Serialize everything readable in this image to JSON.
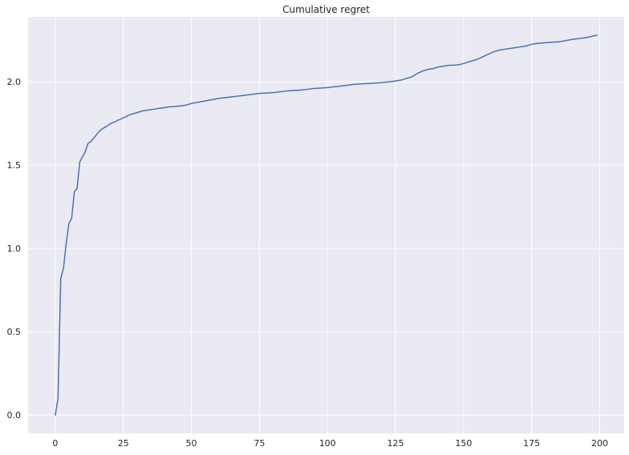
{
  "colors": {
    "background": "#ffffff",
    "plot_background": "#eaeaf2",
    "grid": "#ffffff",
    "text": "#262626"
  },
  "chart_data": {
    "type": "line",
    "title": "Cumulative regret",
    "xlabel": "",
    "ylabel": "",
    "xlim": [
      -10,
      209
    ],
    "ylim": [
      -0.11,
      2.39
    ],
    "x_ticks": [
      0,
      25,
      50,
      75,
      100,
      125,
      150,
      175,
      200
    ],
    "x_tick_labels": [
      "0",
      "25",
      "50",
      "75",
      "100",
      "125",
      "150",
      "175",
      "200"
    ],
    "y_ticks": [
      0.0,
      0.5,
      1.0,
      1.5,
      2.0
    ],
    "y_tick_labels": [
      "0.0",
      "0.5",
      "1.0",
      "1.5",
      "2.0"
    ],
    "grid": true,
    "series": [
      {
        "color": "#4c72b0",
        "x": [
          0,
          1,
          2,
          3,
          4,
          5,
          6,
          7,
          8,
          9,
          10,
          11,
          12,
          13,
          14,
          15,
          16,
          17,
          18,
          19,
          20,
          21,
          22,
          23,
          24,
          25,
          26,
          27,
          28,
          29,
          30,
          32,
          34,
          36,
          38,
          40,
          42,
          44,
          46,
          48,
          50,
          55,
          60,
          65,
          70,
          75,
          80,
          85,
          90,
          95,
          100,
          105,
          110,
          115,
          120,
          125,
          127,
          129,
          131,
          133,
          135,
          137,
          139,
          141,
          143,
          145,
          147,
          149,
          151,
          153,
          155,
          157,
          159,
          161,
          163,
          165,
          167,
          169,
          171,
          173,
          175,
          177,
          180,
          185,
          190,
          195,
          199
        ],
        "y": [
          0.0,
          0.1,
          0.82,
          0.88,
          1.03,
          1.15,
          1.18,
          1.34,
          1.36,
          1.52,
          1.55,
          1.58,
          1.63,
          1.64,
          1.66,
          1.68,
          1.7,
          1.715,
          1.725,
          1.735,
          1.745,
          1.755,
          1.76,
          1.77,
          1.775,
          1.785,
          1.79,
          1.8,
          1.805,
          1.81,
          1.815,
          1.825,
          1.83,
          1.835,
          1.84,
          1.845,
          1.85,
          1.852,
          1.855,
          1.86,
          1.87,
          1.885,
          1.9,
          1.91,
          1.92,
          1.93,
          1.935,
          1.945,
          1.95,
          1.96,
          1.965,
          1.975,
          1.985,
          1.99,
          1.995,
          2.005,
          2.01,
          2.02,
          2.03,
          2.05,
          2.065,
          2.075,
          2.08,
          2.09,
          2.095,
          2.1,
          2.1,
          2.105,
          2.115,
          2.125,
          2.135,
          2.15,
          2.165,
          2.18,
          2.19,
          2.195,
          2.2,
          2.205,
          2.21,
          2.215,
          2.225,
          2.23,
          2.235,
          2.24,
          2.255,
          2.265,
          2.28
        ]
      }
    ]
  }
}
